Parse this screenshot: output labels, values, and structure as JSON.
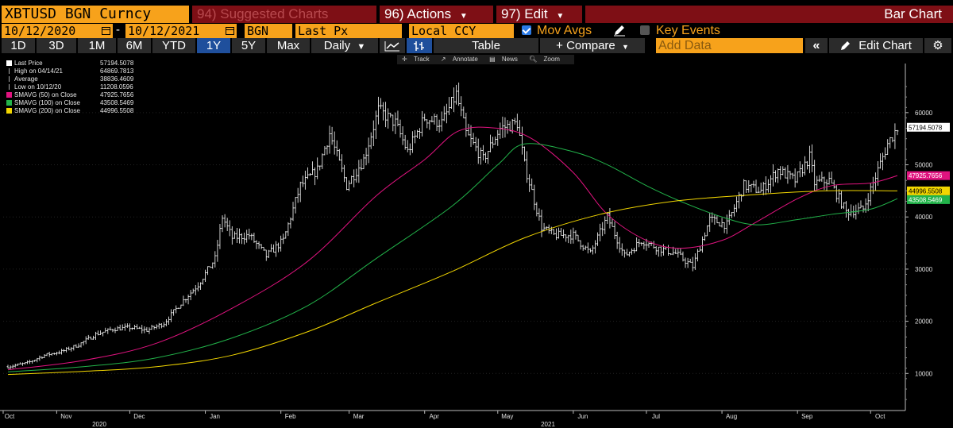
{
  "header": {
    "ticker": "XBTUSD BGN Curncy",
    "suggested": "94) Suggested Charts",
    "actions": "96) Actions",
    "edit": "97) Edit",
    "chart_kind": "Bar Chart"
  },
  "settings": {
    "start_date": "10/12/2020",
    "end_date": "10/12/2021",
    "dash": "-",
    "source": "BGN",
    "field": "Last Px",
    "currency": "Local CCY",
    "mov_avgs_label": "Mov Avgs",
    "mov_avgs_checked": true,
    "key_events_label": "Key Events",
    "key_events_checked": false
  },
  "toolbar": {
    "periods": [
      "1D",
      "3D",
      "1M",
      "6M",
      "YTD",
      "1Y",
      "5Y",
      "Max"
    ],
    "selected_period": "1Y",
    "frequency": "Daily",
    "table_label": "Table",
    "compare_label": "+ Compare",
    "add_data_placeholder": "Add Data",
    "edit_chart_label": "Edit Chart"
  },
  "subtoolbar": {
    "track": "Track",
    "annotate": "Annotate",
    "news": "News",
    "zoom": "Zoom"
  },
  "legend": [
    {
      "name": "Last Price",
      "value": "57194.5078",
      "color": "#ffffff"
    },
    {
      "name": "High on 04/14/21",
      "value": "64869.7813",
      "color": ""
    },
    {
      "name": "Average",
      "value": "38836.4609",
      "color": ""
    },
    {
      "name": "Low on 10/12/20",
      "value": "11208.0596",
      "color": ""
    },
    {
      "name": "SMAVG (50)  on Close",
      "value": "47925.7656",
      "color": "#e0137f"
    },
    {
      "name": "SMAVG (100)  on Close",
      "value": "43508.5469",
      "color": "#22b34a"
    },
    {
      "name": "SMAVG (200)  on Close",
      "value": "44996.5508",
      "color": "#f2d600"
    }
  ],
  "chart_data": {
    "type": "bar",
    "x_tick_labels": [
      "Oct",
      "Nov",
      "Dec",
      "Jan",
      "Feb",
      "Mar",
      "Apr",
      "May",
      "Jun",
      "Jul",
      "Aug",
      "Sep",
      "Oct"
    ],
    "year_labels": [
      "2020",
      "2021"
    ],
    "y_ticks": [
      10000,
      20000,
      30000,
      40000,
      50000,
      60000
    ],
    "ylim": [
      3500,
      68500
    ],
    "price_tags": [
      {
        "value": 57194.5078,
        "label": "57194.5078",
        "bg": "#ffffff",
        "fg": "#000000"
      },
      {
        "value": 47925.7656,
        "label": "47925.7656",
        "bg": "#e0137f",
        "fg": "#ffffff"
      },
      {
        "value": 44996.5508,
        "label": "44996.5508",
        "bg": "#f2d600",
        "fg": "#000000"
      },
      {
        "value": 43508.5469,
        "label": "43508.5469",
        "bg": "#22b34a",
        "fg": "#ffffff"
      }
    ],
    "series": [
      {
        "name": "Last Price",
        "kind": "ohlc",
        "color": "#ffffff",
        "points": [
          [
            "2020-10-12",
            11300
          ],
          [
            "2020-10-20",
            12000
          ],
          [
            "2020-10-27",
            13500
          ],
          [
            "2020-11-03",
            14200
          ],
          [
            "2020-11-10",
            15500
          ],
          [
            "2020-11-17",
            17500
          ],
          [
            "2020-11-24",
            18500
          ],
          [
            "2020-12-01",
            18800
          ],
          [
            "2020-12-08",
            18300
          ],
          [
            "2020-12-15",
            19600
          ],
          [
            "2020-12-22",
            23500
          ],
          [
            "2020-12-29",
            27000
          ],
          [
            "2021-01-05",
            32000
          ],
          [
            "2021-01-08",
            40000
          ],
          [
            "2021-01-12",
            36000
          ],
          [
            "2021-01-19",
            36500
          ],
          [
            "2021-01-26",
            32500
          ],
          [
            "2021-02-02",
            35500
          ],
          [
            "2021-02-09",
            46000
          ],
          [
            "2021-02-16",
            49000
          ],
          [
            "2021-02-21",
            56000
          ],
          [
            "2021-02-28",
            46000
          ],
          [
            "2021-03-07",
            51000
          ],
          [
            "2021-03-13",
            60500
          ],
          [
            "2021-03-20",
            58000
          ],
          [
            "2021-03-25",
            52500
          ],
          [
            "2021-04-01",
            59000
          ],
          [
            "2021-04-08",
            58000
          ],
          [
            "2021-04-14",
            63500
          ],
          [
            "2021-04-18",
            56000
          ],
          [
            "2021-04-25",
            51000
          ],
          [
            "2021-05-02",
            57000
          ],
          [
            "2021-05-09",
            58000
          ],
          [
            "2021-05-12",
            50000
          ],
          [
            "2021-05-19",
            38000
          ],
          [
            "2021-05-24",
            36500
          ],
          [
            "2021-06-01",
            36500
          ],
          [
            "2021-06-08",
            33000
          ],
          [
            "2021-06-15",
            40000
          ],
          [
            "2021-06-22",
            32500
          ],
          [
            "2021-06-29",
            35500
          ],
          [
            "2021-07-06",
            34000
          ],
          [
            "2021-07-13",
            33000
          ],
          [
            "2021-07-20",
            30500
          ],
          [
            "2021-07-27",
            39500
          ],
          [
            "2021-08-03",
            38500
          ],
          [
            "2021-08-10",
            46000
          ],
          [
            "2021-08-17",
            45000
          ],
          [
            "2021-08-24",
            49000
          ],
          [
            "2021-08-31",
            47000
          ],
          [
            "2021-09-06",
            51500
          ],
          [
            "2021-09-08",
            46500
          ],
          [
            "2021-09-14",
            47000
          ],
          [
            "2021-09-21",
            41000
          ],
          [
            "2021-09-28",
            41500
          ],
          [
            "2021-10-04",
            49000
          ],
          [
            "2021-10-08",
            54000
          ],
          [
            "2021-10-12",
            57194
          ]
        ]
      },
      {
        "name": "SMAVG (50)",
        "kind": "line",
        "color": "#e0137f",
        "points": [
          [
            "2020-10-12",
            10700
          ],
          [
            "2020-11-12",
            12500
          ],
          [
            "2020-12-12",
            15800
          ],
          [
            "2021-01-12",
            22500
          ],
          [
            "2021-02-12",
            31500
          ],
          [
            "2021-03-12",
            44000
          ],
          [
            "2021-04-01",
            51000
          ],
          [
            "2021-04-15",
            56500
          ],
          [
            "2021-05-01",
            57000
          ],
          [
            "2021-05-15",
            55000
          ],
          [
            "2021-06-01",
            48500
          ],
          [
            "2021-06-15",
            40500
          ],
          [
            "2021-07-01",
            35500
          ],
          [
            "2021-07-15",
            34000
          ],
          [
            "2021-08-01",
            35500
          ],
          [
            "2021-08-15",
            39000
          ],
          [
            "2021-09-01",
            43500
          ],
          [
            "2021-09-15",
            46000
          ],
          [
            "2021-10-01",
            46500
          ],
          [
            "2021-10-12",
            47926
          ]
        ]
      },
      {
        "name": "SMAVG (100)",
        "kind": "line",
        "color": "#22b34a",
        "points": [
          [
            "2020-10-12",
            10300
          ],
          [
            "2020-11-12",
            11300
          ],
          [
            "2020-12-12",
            13000
          ],
          [
            "2021-01-12",
            16800
          ],
          [
            "2021-02-12",
            23000
          ],
          [
            "2021-03-12",
            32000
          ],
          [
            "2021-04-12",
            42000
          ],
          [
            "2021-05-01",
            50000
          ],
          [
            "2021-05-12",
            54000
          ],
          [
            "2021-06-01",
            52500
          ],
          [
            "2021-06-15",
            50000
          ],
          [
            "2021-07-01",
            46000
          ],
          [
            "2021-07-15",
            43000
          ],
          [
            "2021-08-01",
            40000
          ],
          [
            "2021-08-15",
            38500
          ],
          [
            "2021-09-01",
            39500
          ],
          [
            "2021-09-15",
            40500
          ],
          [
            "2021-10-01",
            41500
          ],
          [
            "2021-10-12",
            43509
          ]
        ]
      },
      {
        "name": "SMAVG (200)",
        "kind": "line",
        "color": "#f2d600",
        "points": [
          [
            "2020-10-12",
            9800
          ],
          [
            "2020-11-12",
            10400
          ],
          [
            "2020-12-12",
            11300
          ],
          [
            "2021-01-12",
            13500
          ],
          [
            "2021-02-12",
            18000
          ],
          [
            "2021-03-12",
            23500
          ],
          [
            "2021-04-12",
            29500
          ],
          [
            "2021-05-12",
            36000
          ],
          [
            "2021-06-12",
            40500
          ],
          [
            "2021-07-12",
            43000
          ],
          [
            "2021-08-12",
            44200
          ],
          [
            "2021-09-12",
            45000
          ],
          [
            "2021-10-12",
            44997
          ]
        ]
      }
    ]
  }
}
